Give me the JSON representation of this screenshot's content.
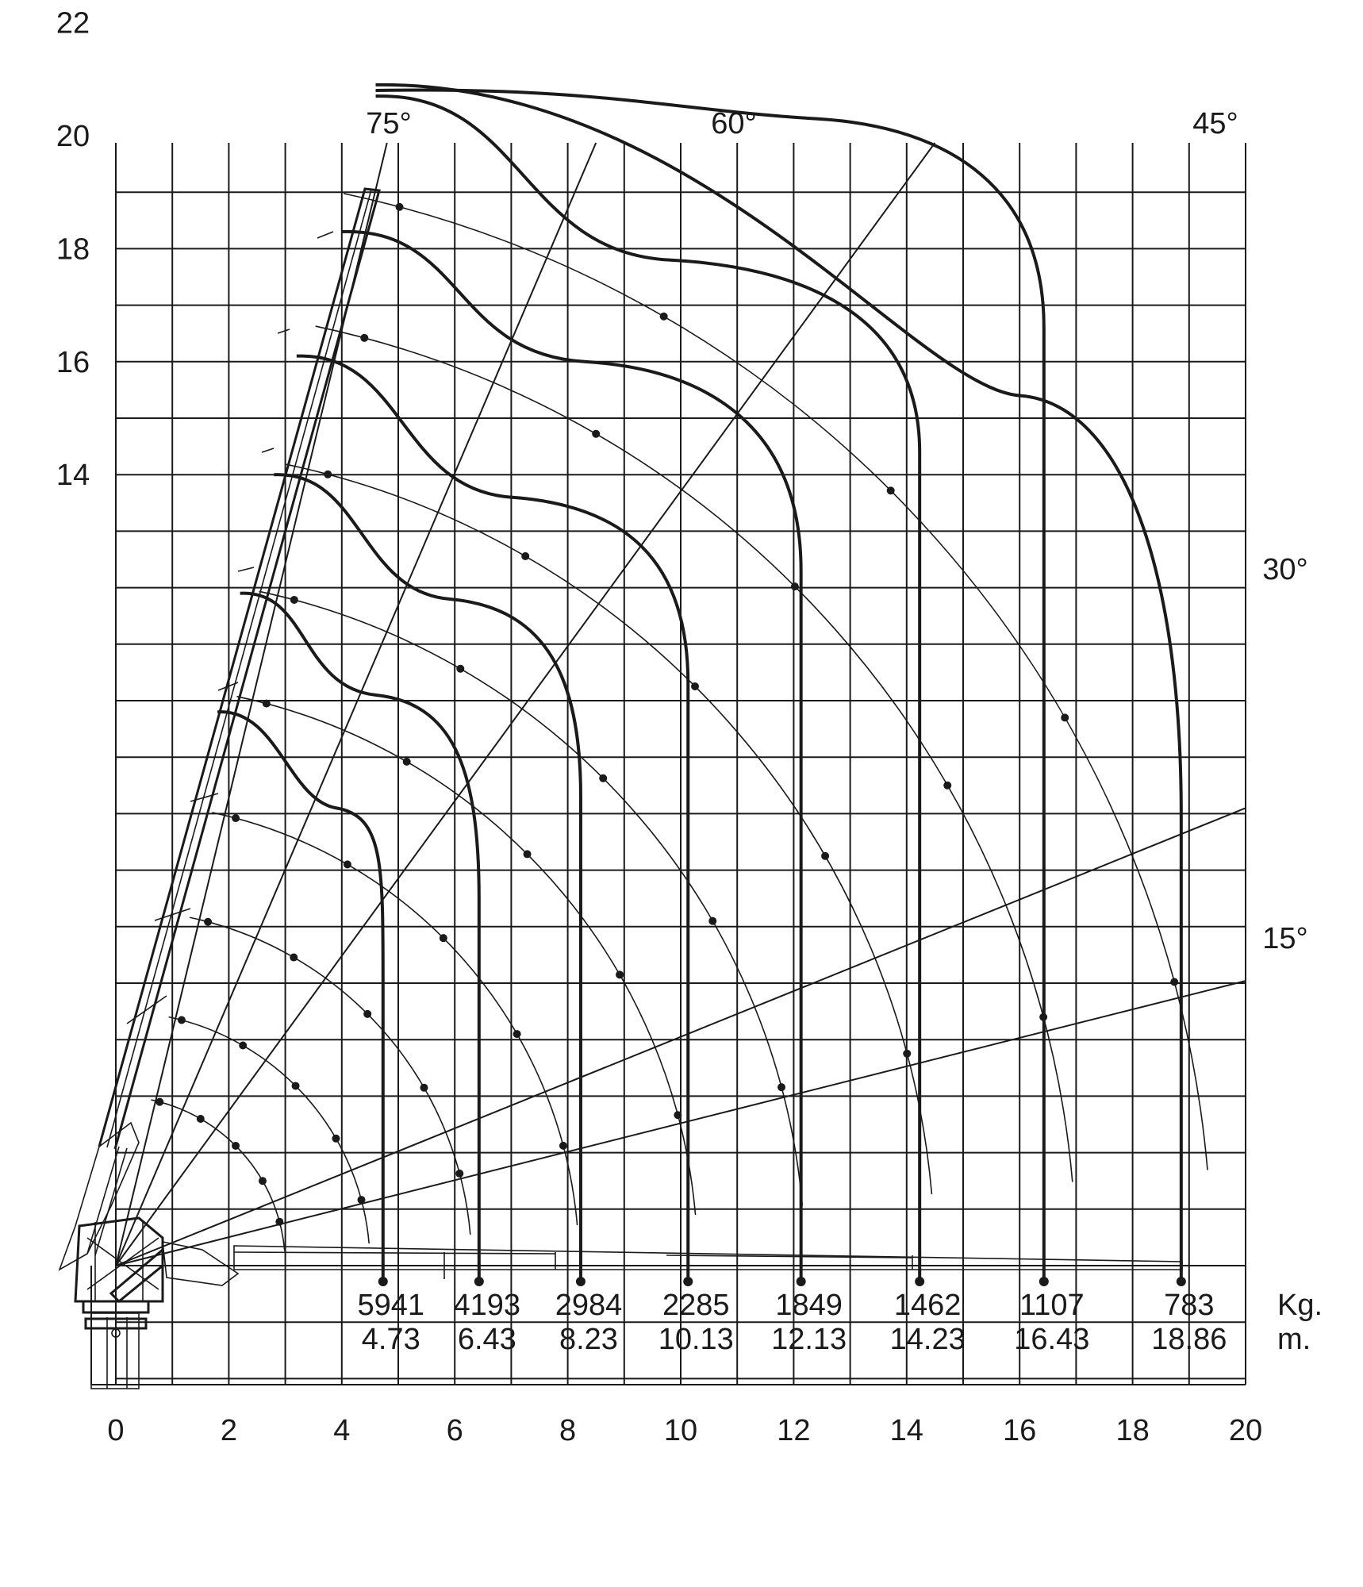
{
  "axes": {
    "y_ticks": [
      "14",
      "16",
      "18",
      "20",
      "22"
    ],
    "y_tick_values": [
      14,
      16,
      18,
      20,
      22
    ],
    "x_ticks": [
      "0",
      "2",
      "4",
      "6",
      "8",
      "10",
      "12",
      "14",
      "16",
      "18",
      "20"
    ],
    "x_tick_values": [
      0,
      2,
      4,
      6,
      8,
      10,
      12,
      14,
      16,
      18,
      20
    ],
    "xlim": [
      0,
      20
    ],
    "ylim": [
      -1.5,
      22
    ],
    "grid": true
  },
  "angles": [
    {
      "label": "75°",
      "deg": 75
    },
    {
      "label": "60°",
      "deg": 60
    },
    {
      "label": "45°",
      "deg": 45
    },
    {
      "label": "30°",
      "deg": 30
    },
    {
      "label": "15°",
      "deg": 15
    }
  ],
  "units": {
    "load": "Kg.",
    "reach": "m."
  },
  "load_points": [
    {
      "kg": "5941",
      "m": "4.73",
      "reach": 4.73
    },
    {
      "kg": "4193",
      "m": "6.43",
      "reach": 6.43
    },
    {
      "kg": "2984",
      "m": "8.23",
      "reach": 8.23
    },
    {
      "kg": "2285",
      "m": "10.13",
      "reach": 10.13
    },
    {
      "kg": "1849",
      "m": "12.13",
      "reach": 12.13
    },
    {
      "kg": "1462",
      "m": "14.23",
      "reach": 14.23
    },
    {
      "kg": "1107",
      "m": "16.43",
      "reach": 16.43
    },
    {
      "kg": "783",
      "m": "18.86",
      "reach": 18.86
    }
  ],
  "chart_data": {
    "type": "line",
    "series": [
      {
        "values": [
          [
            4.73,
            0
          ],
          [
            4.73,
            5
          ],
          [
            3.9,
            8.1
          ],
          [
            1.8,
            9.8
          ]
        ]
      },
      {
        "values": [
          [
            6.43,
            0
          ],
          [
            6.43,
            6.5
          ],
          [
            4.6,
            10.1
          ],
          [
            2.2,
            11.9
          ]
        ]
      },
      {
        "values": [
          [
            8.23,
            0
          ],
          [
            8.23,
            8.3
          ],
          [
            5.9,
            11.8
          ],
          [
            2.8,
            14.0
          ]
        ]
      },
      {
        "values": [
          [
            10.13,
            0
          ],
          [
            10.13,
            10.3
          ],
          [
            7.0,
            13.6
          ],
          [
            3.2,
            16.1
          ]
        ]
      },
      {
        "values": [
          [
            12.13,
            0
          ],
          [
            12.13,
            12.3
          ],
          [
            8.3,
            16.0
          ],
          [
            4.0,
            18.3
          ]
        ]
      },
      {
        "values": [
          [
            14.23,
            0
          ],
          [
            14.23,
            14.4
          ],
          [
            9.8,
            17.8
          ],
          [
            4.6,
            20.7
          ]
        ]
      },
      {
        "values": [
          [
            16.43,
            0
          ],
          [
            16.43,
            16.6
          ],
          [
            12.4,
            20.3
          ],
          [
            4.6,
            20.8
          ]
        ]
      },
      {
        "values": [
          [
            18.86,
            0
          ],
          [
            18.86,
            8.0
          ],
          [
            16.0,
            15.4
          ],
          [
            4.6,
            20.9
          ]
        ]
      }
    ]
  }
}
